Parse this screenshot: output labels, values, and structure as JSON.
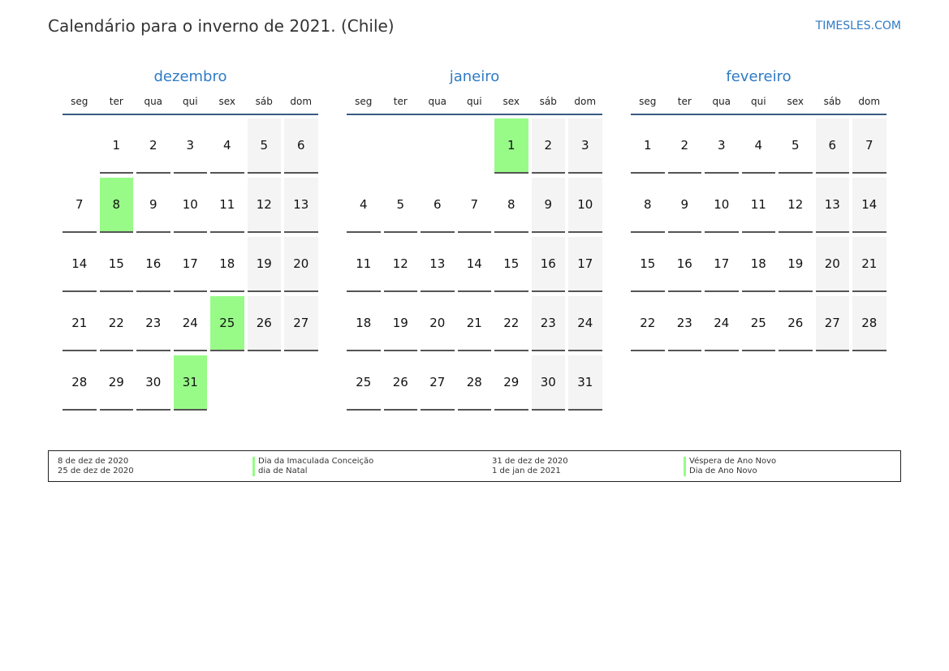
{
  "header": {
    "title": "Calendário para o inverno de 2021. (Chile)",
    "brand": "TIMESLES.COM"
  },
  "colors": {
    "accent": "#2f7bc4",
    "holiday": "#98fb88",
    "weekend": "#f4f4f4"
  },
  "weekdays": [
    "seg",
    "ter",
    "qua",
    "qui",
    "sex",
    "sáb",
    "dom"
  ],
  "months": [
    {
      "name": "dezembro",
      "offset": 1,
      "days": 31,
      "holidays": [
        8,
        25,
        31
      ]
    },
    {
      "name": "janeiro",
      "offset": 4,
      "days": 31,
      "holidays": [
        1
      ]
    },
    {
      "name": "fevereiro",
      "offset": 0,
      "days": 28,
      "holidays": []
    }
  ],
  "legend": [
    {
      "date": "8 de dez de 2020",
      "name": "Dia da Imaculada Conceição"
    },
    {
      "date": "25 de dez de 2020",
      "name": "dia de Natal"
    },
    {
      "date": "31 de dez de 2020",
      "name": "Véspera de Ano Novo"
    },
    {
      "date": "1 de jan de 2021",
      "name": "Dia de Ano Novo"
    }
  ]
}
